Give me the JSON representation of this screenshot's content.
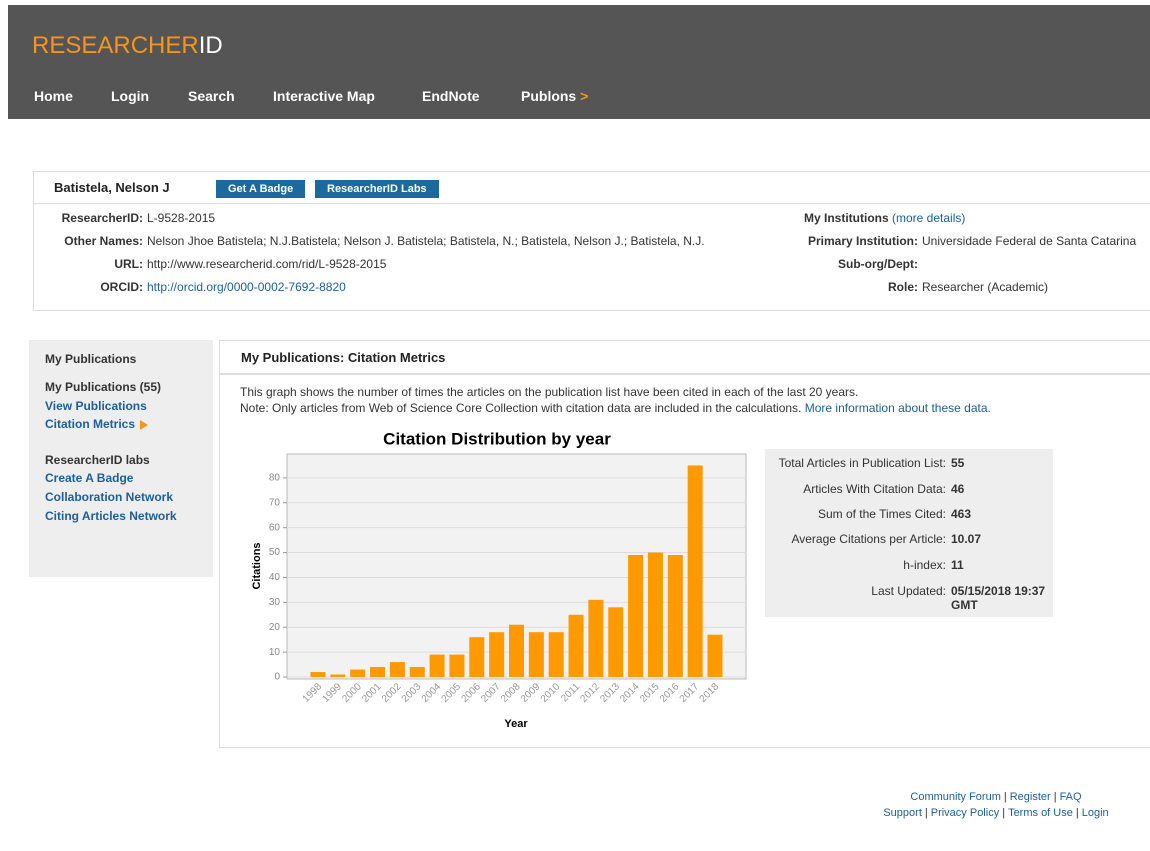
{
  "header": {
    "logo_main": "RESEARCHER",
    "logo_accent": "ID",
    "nav": [
      "Home",
      "Login",
      "Search",
      "Interactive Map",
      "EndNote",
      "Publons"
    ],
    "nav_arrow": ">"
  },
  "profile": {
    "name": "Batistela, Nelson J",
    "buttons": [
      "Get A Badge",
      "ResearcherID Labs"
    ],
    "fields": [
      {
        "label": "ResearcherID:",
        "value": "L-9528-2015"
      },
      {
        "label": "Other Names:",
        "value": "Nelson Jhoe Batistela; N.J.Batistela; Nelson J. Batistela; Batistela, N.; Batistela, Nelson J.; Batistela, N.J."
      },
      {
        "label": "URL:",
        "value": "http://www.researcherid.com/rid/L-9528-2015"
      },
      {
        "label": "ORCID:",
        "value": "http://orcid.org/0000-0002-7692-8820"
      }
    ],
    "institutions": {
      "label": "My Institutions",
      "link": "(more details)",
      "fields": [
        {
          "label": "Primary Institution:",
          "value": "Universidade Federal de Santa Catarina"
        },
        {
          "label": "Sub-org/Dept:",
          "value": ""
        },
        {
          "label": "Role:",
          "value": "Researcher (Academic)"
        }
      ]
    }
  },
  "sidebar": {
    "heading": "My Publications",
    "count": "My Publications (55)",
    "links": [
      "View Publications",
      "Citation Metrics"
    ],
    "labs_heading": "ResearcherID labs",
    "labs_links": [
      "Create A Badge",
      "Collaboration Network",
      "Citing Articles Network"
    ]
  },
  "main": {
    "heading": "My Publications: Citation Metrics",
    "description": "This graph shows the number of times the articles on the publication list have been cited in each of the last 20 years.",
    "note": "Note: Only articles from Web of Science Core Collection with citation data are included in the calculations.",
    "note_link": "More information about these data."
  },
  "stats": [
    {
      "label": "Total Articles in Publication List:",
      "value": "55"
    },
    {
      "label": "Articles With Citation Data:",
      "value": "46"
    },
    {
      "label": "Sum of the Times Cited:",
      "value": "463"
    },
    {
      "label": "Average Citations per Article:",
      "value": "10.07"
    },
    {
      "label": "h-index:",
      "value": "11"
    },
    {
      "label": "Last Updated:",
      "value": "05/15/2018 19:37 GMT"
    }
  ],
  "footer": {
    "separator": "|",
    "lines": [
      [
        "Community Forum",
        "Register",
        "FAQ"
      ],
      [
        "Support",
        "Privacy Policy",
        "Terms of Use",
        "Login"
      ]
    ]
  },
  "chart_data": {
    "type": "bar",
    "title": "Citation Distribution by year",
    "x_label": "Year",
    "y_label": "Citations",
    "color": "#ff9900",
    "grid": true,
    "categories": [
      "1998",
      "1999",
      "2000",
      "2001",
      "2002",
      "2003",
      "2004",
      "2005",
      "2006",
      "2007",
      "2008",
      "2009",
      "2010",
      "2011",
      "2012",
      "2013",
      "2014",
      "2015",
      "2016",
      "2017",
      "2018"
    ],
    "values": [
      2,
      1,
      3,
      4,
      6,
      4,
      9,
      9,
      16,
      18,
      21,
      18,
      18,
      25,
      31,
      28,
      49,
      50,
      49,
      85,
      17
    ],
    "ylim": [
      0,
      90
    ],
    "yticks": [
      0,
      10,
      20,
      30,
      40,
      50,
      60,
      70,
      80
    ]
  }
}
